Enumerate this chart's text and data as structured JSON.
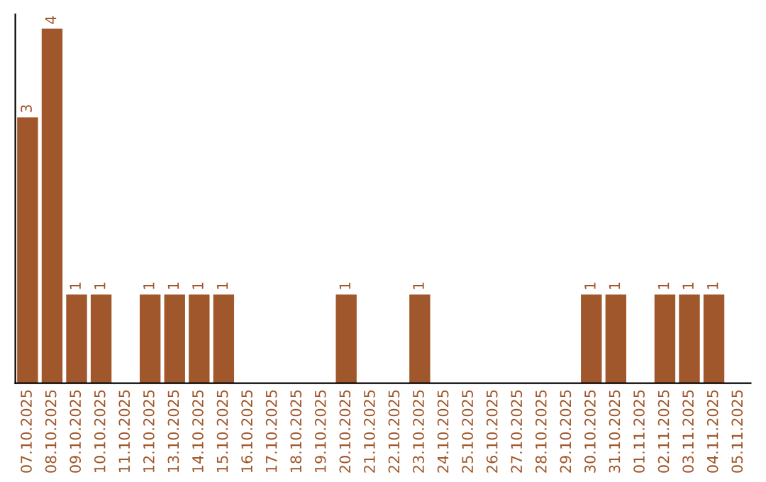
{
  "chart_data": {
    "type": "bar",
    "categories": [
      "07.10.2025",
      "08.10.2025",
      "09.10.2025",
      "10.10.2025",
      "11.10.2025",
      "12.10.2025",
      "13.10.2025",
      "14.10.2025",
      "15.10.2025",
      "16.10.2025",
      "17.10.2025",
      "18.10.2025",
      "19.10.2025",
      "20.10.2025",
      "21.10.2025",
      "22.10.2025",
      "23.10.2025",
      "24.10.2025",
      "25.10.2025",
      "26.10.2025",
      "27.10.2025",
      "28.10.2025",
      "29.10.2025",
      "30.10.2025",
      "31.10.2025",
      "01.11.2025",
      "02.11.2025",
      "03.11.2025",
      "04.11.2025",
      "05.11.2025"
    ],
    "values": [
      3,
      4,
      1,
      1,
      0,
      1,
      1,
      1,
      1,
      0,
      0,
      0,
      0,
      1,
      0,
      0,
      1,
      0,
      0,
      0,
      0,
      0,
      0,
      1,
      1,
      0,
      1,
      1,
      1,
      0
    ],
    "value_labels": [
      "3",
      "4",
      "1",
      "1",
      null,
      "1",
      "1",
      "1",
      "1",
      null,
      null,
      null,
      null,
      "1",
      null,
      null,
      "1",
      null,
      null,
      null,
      null,
      null,
      null,
      "1",
      "1",
      null,
      "1",
      "1",
      "1",
      null
    ],
    "color": "#a0572b",
    "tick_labels": "x",
    "grid": false,
    "legend": false
  }
}
